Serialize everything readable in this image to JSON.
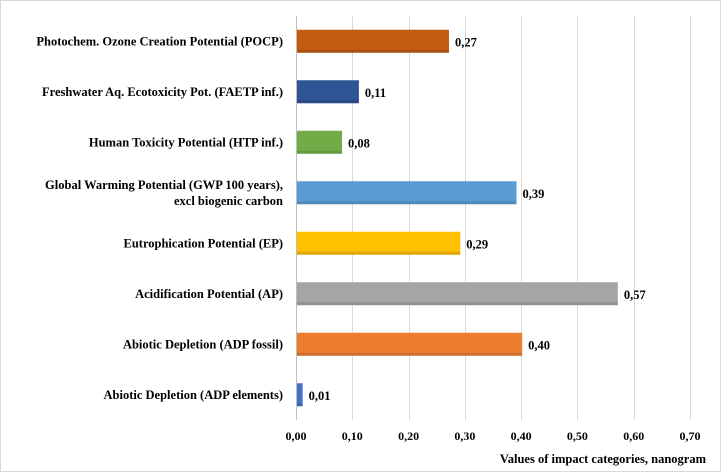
{
  "chart_data": {
    "type": "bar",
    "orientation": "horizontal",
    "categories": [
      "Photochem. Ozone Creation Potential (POCP)",
      "Freshwater  Aq. Ecotoxicity Pot. (FAETP inf.)",
      "Human Toxicity Potential (HTP inf.)",
      "Global Warming Potential (GWP 100 years), excl biogenic carbon",
      "Eutrophication Potential (EP)",
      "Acidification Potential (AP)",
      "Abiotic Depletion (ADP fossil)",
      "Abiotic Depletion (ADP elements)"
    ],
    "category_lines": [
      [
        "Photochem. Ozone Creation Potential (POCP)"
      ],
      [
        "Freshwater  Aq. Ecotoxicity Pot. (FAETP inf.)"
      ],
      [
        "Human Toxicity Potential (HTP inf.)"
      ],
      [
        "Global Warming Potential (GWP 100 years),",
        "excl biogenic carbon"
      ],
      [
        "Eutrophication Potential (EP)"
      ],
      [
        "Acidification Potential (AP)"
      ],
      [
        "Abiotic Depletion (ADP fossil)"
      ],
      [
        "Abiotic Depletion (ADP elements)"
      ]
    ],
    "values": [
      0.27,
      0.11,
      0.08,
      0.39,
      0.29,
      0.57,
      0.4,
      0.01
    ],
    "value_labels": [
      "0,27",
      "0,11",
      "0,08",
      "0,39",
      "0,29",
      "0,57",
      "0,40",
      "0,01"
    ],
    "colors": [
      "#c55a11",
      "#2f5597",
      "#70ad47",
      "#5b9bd5",
      "#ffc000",
      "#a5a5a5",
      "#ed7d31",
      "#4472c4"
    ],
    "xlim": [
      0,
      0.7
    ],
    "x_ticks": [
      0,
      0.1,
      0.2,
      0.3,
      0.4,
      0.5,
      0.6,
      0.7
    ],
    "x_tick_labels": [
      "0,00",
      "0,10",
      "0,20",
      "0,30",
      "0,40",
      "0,50",
      "0,60",
      "0,70"
    ],
    "xlabel": "Values of impact categories, nanogram",
    "ylabel": "",
    "title": "",
    "grid": "vertical",
    "legend": "none"
  }
}
